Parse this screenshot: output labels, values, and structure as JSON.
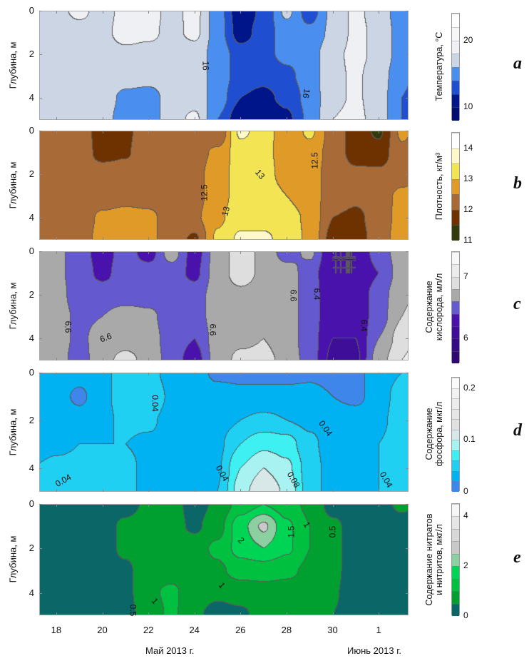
{
  "chart_data": [
    {
      "type": "heatmap",
      "panel_letter": "a",
      "ylabel": "Глубина, м",
      "colorbar_title": [
        "Температура, °C"
      ],
      "yticks": [
        "0",
        "2",
        "4"
      ],
      "ylim": [
        5,
        0
      ],
      "levels": [
        8,
        10,
        12,
        14,
        16,
        18,
        20,
        22,
        24
      ],
      "colors": [
        "#000c6e",
        "#00158a",
        "#1f4fd0",
        "#4a8ff0",
        "#ccd5e3",
        "#eef0f4",
        "#f6f6f8",
        "#ffffff"
      ],
      "colorbar_ticks": [
        "10",
        "20"
      ],
      "colorbar_tick_values": [
        10,
        20
      ],
      "contour_labels": [
        "16",
        "16"
      ],
      "depths": [
        0,
        1,
        2,
        3,
        4,
        5
      ],
      "values": [
        [
          17,
          17.5,
          18.4,
          17.3,
          18.6,
          18.8,
          17.4,
          18.6,
          15.0,
          10.5,
          12.5,
          16.5,
          13,
          16.5,
          18.5,
          17,
          15,
          14
        ],
        [
          17,
          17.2,
          17.3,
          17.5,
          18.8,
          18.5,
          17.4,
          18.5,
          15.0,
          11,
          13,
          15,
          14.5,
          16.5,
          18.5,
          17.5,
          15,
          14
        ],
        [
          17,
          17,
          17,
          17,
          17.5,
          17.2,
          17,
          17,
          15.2,
          13,
          13.5,
          14.5,
          15,
          17.5,
          18.5,
          17.5,
          15,
          14
        ],
        [
          17,
          17,
          17,
          17,
          17,
          17,
          17,
          17,
          15.3,
          13,
          12.5,
          13.5,
          15,
          17.5,
          18.3,
          17,
          14.5,
          13
        ],
        [
          17,
          17,
          17,
          17,
          15.5,
          15,
          17,
          17,
          15.2,
          12,
          11.5,
          12.5,
          14.8,
          17.5,
          18.3,
          17,
          14,
          12.5
        ],
        [
          17,
          17,
          17,
          16.8,
          15,
          15,
          17,
          18.5,
          14,
          10.5,
          10,
          11.5,
          14.5,
          18,
          18.6,
          17,
          14,
          12
        ]
      ]
    },
    {
      "type": "heatmap",
      "panel_letter": "b",
      "ylabel": "Глубина, м",
      "colorbar_title": [
        "Плотность, кг/м³"
      ],
      "yticks": [
        "0",
        "2",
        "4"
      ],
      "ylim": [
        5,
        0
      ],
      "levels": [
        11,
        11.5,
        12,
        12.5,
        13,
        13.5,
        14,
        14.5
      ],
      "colors": [
        "#343a0c",
        "#6e3200",
        "#a86a36",
        "#e09a28",
        "#f2e452",
        "#fff8c8",
        "#ffffff"
      ],
      "colorbar_ticks": [
        "11",
        "12",
        "13",
        "14"
      ],
      "colorbar_tick_values": [
        11,
        12,
        13,
        14
      ],
      "contour_labels": [
        "12.5",
        "13",
        "13",
        "12.5"
      ],
      "depths": [
        0,
        1,
        2,
        3,
        4,
        5
      ],
      "values": [
        [
          12.2,
          12.3,
          12.25,
          11.8,
          11.9,
          12.3,
          12.3,
          12.25,
          12.0,
          13.6,
          13.3,
          12.6,
          13.1,
          12.3,
          11.8,
          11.4,
          12.6,
          12.2
        ],
        [
          12.2,
          12.3,
          12.25,
          11.85,
          11.95,
          12.3,
          12.3,
          12.3,
          12.6,
          13.3,
          13.2,
          12.7,
          12.8,
          12.3,
          11.8,
          11.7,
          12.4,
          12.2
        ],
        [
          12.2,
          12.2,
          12.2,
          12.2,
          12.2,
          12.3,
          12.3,
          12.3,
          12.8,
          13.2,
          13.2,
          12.8,
          12.7,
          12.3,
          12.1,
          12.1,
          12.3,
          12.4
        ],
        [
          12.2,
          12.2,
          12.2,
          12.2,
          12.3,
          12.3,
          12.3,
          12.3,
          12.8,
          13.2,
          13.3,
          13.0,
          12.7,
          12.3,
          12.1,
          12.3,
          12.6,
          12.8
        ],
        [
          12.2,
          12.2,
          12.2,
          12.6,
          12.7,
          12.6,
          12.3,
          12.4,
          12.9,
          13.3,
          13.3,
          13.2,
          12.9,
          12.0,
          11.9,
          12.2,
          12.7,
          13.1
        ],
        [
          12.2,
          12.2,
          12.2,
          12.7,
          12.8,
          12.6,
          12.3,
          11.9,
          13.1,
          13.6,
          13.6,
          13.3,
          12.9,
          11.8,
          11.8,
          12.2,
          12.8,
          13.2
        ]
      ]
    },
    {
      "type": "heatmap",
      "panel_letter": "c",
      "ylabel": "Глубина, м",
      "colorbar_title": [
        "Содержание",
        "кислорода, мл/л"
      ],
      "yticks": [
        "0",
        "2",
        "4"
      ],
      "ylim": [
        5,
        0
      ],
      "levels": [
        5.6,
        5.8,
        6.0,
        6.2,
        6.4,
        6.6,
        6.8,
        7.0,
        7.2,
        7.4
      ],
      "colors": [
        "#2e0a70",
        "#360c85",
        "#3e0e98",
        "#4a12ad",
        "#6459cf",
        "#a9a9a9",
        "#dedede",
        "#ececec",
        "#f8f8f8"
      ],
      "colorbar_ticks": [
        "6",
        "7"
      ],
      "colorbar_tick_values": [
        6,
        7
      ],
      "contour_labels": [
        "6.6",
        "6.6",
        "6.6",
        "6.6",
        "6.4",
        "6.4"
      ],
      "depths": [
        0,
        1,
        2,
        3,
        4,
        5
      ],
      "values": [
        [
          6.7,
          6.65,
          6.5,
          6.3,
          6.5,
          6.3,
          6.7,
          6.3,
          6.7,
          6.9,
          6.75,
          6.5,
          6.65,
          6.2,
          6.2,
          6.5,
          6.7,
          6.8
        ],
        [
          6.7,
          6.65,
          6.5,
          6.35,
          6.5,
          6.5,
          6.5,
          6.35,
          6.7,
          6.9,
          6.75,
          6.7,
          6.5,
          6.2,
          6.2,
          6.4,
          6.7,
          6.8
        ],
        [
          6.7,
          6.68,
          6.5,
          6.5,
          6.5,
          6.5,
          6.5,
          6.5,
          6.7,
          6.75,
          6.7,
          6.7,
          6.5,
          6.25,
          6.25,
          6.5,
          6.75,
          6.9
        ],
        [
          6.7,
          6.7,
          6.55,
          6.6,
          6.7,
          6.65,
          6.5,
          6.5,
          6.7,
          6.7,
          6.7,
          6.7,
          6.5,
          6.25,
          6.25,
          6.5,
          6.8,
          7.0
        ],
        [
          6.7,
          6.7,
          6.55,
          6.7,
          6.72,
          6.7,
          6.5,
          6.4,
          6.7,
          6.75,
          6.8,
          6.7,
          6.5,
          6.2,
          6.2,
          6.6,
          6.9,
          7.1
        ],
        [
          6.7,
          6.7,
          6.5,
          6.75,
          6.85,
          6.75,
          6.5,
          6.3,
          6.7,
          6.85,
          6.85,
          6.75,
          6.5,
          6.15,
          6.15,
          6.7,
          7.0,
          7.2
        ]
      ]
    },
    {
      "type": "heatmap",
      "panel_letter": "d",
      "ylabel": "Глубина, м",
      "colorbar_title": [
        "Содержание",
        "фосфора, мкг/л"
      ],
      "yticks": [
        "0",
        "2",
        "4"
      ],
      "ylim": [
        5,
        0
      ],
      "levels": [
        0,
        0.02,
        0.04,
        0.06,
        0.08,
        0.1,
        0.12,
        0.14,
        0.16,
        0.18,
        0.2,
        0.22
      ],
      "colors": [
        "#3f86ea",
        "#00b2f2",
        "#20d0f2",
        "#3ff0f2",
        "#a8f2f2",
        "#d8e8e8",
        "#e0e0e0",
        "#e6e6e6",
        "#ececec",
        "#f2f2f2",
        "#fafafa"
      ],
      "colorbar_ticks": [
        "0",
        "0.1",
        "0.2"
      ],
      "colorbar_tick_values": [
        0,
        0.1,
        0.2
      ],
      "contour_labels": [
        "0.04",
        "0.04",
        "0.04",
        "0.04",
        "0.08",
        "0.04"
      ],
      "depths": [
        0,
        1,
        2,
        3,
        4,
        5
      ],
      "values": [
        [
          0.03,
          0.03,
          0.03,
          0.035,
          0.05,
          0.05,
          0.03,
          0.03,
          0.015,
          0.015,
          0.015,
          0.015,
          0.017,
          0.015,
          0.015,
          0.03,
          0.04,
          0.07
        ],
        [
          0.03,
          0.03,
          0.015,
          0.035,
          0.05,
          0.06,
          0.035,
          0.03,
          0.03,
          0.025,
          0.025,
          0.025,
          0.025,
          0.02,
          0.015,
          0.03,
          0.05,
          0.08
        ],
        [
          0.03,
          0.03,
          0.03,
          0.035,
          0.045,
          0.045,
          0.03,
          0.03,
          0.03,
          0.04,
          0.045,
          0.04,
          0.035,
          0.03,
          0.03,
          0.035,
          0.05,
          0.07
        ],
        [
          0.03,
          0.035,
          0.04,
          0.04,
          0.04,
          0.035,
          0.03,
          0.03,
          0.035,
          0.06,
          0.075,
          0.07,
          0.045,
          0.03,
          0.03,
          0.04,
          0.05,
          0.06
        ],
        [
          0.04,
          0.045,
          0.045,
          0.045,
          0.045,
          0.035,
          0.03,
          0.03,
          0.037,
          0.08,
          0.1,
          0.085,
          0.05,
          0.03,
          0.03,
          0.04,
          0.05,
          0.06
        ],
        [
          0.045,
          0.05,
          0.05,
          0.05,
          0.045,
          0.035,
          0.03,
          0.03,
          0.04,
          0.09,
          0.12,
          0.095,
          0.05,
          0.03,
          0.03,
          0.04,
          0.05,
          0.06
        ]
      ]
    },
    {
      "type": "heatmap",
      "panel_letter": "e",
      "ylabel": "Глубина, м",
      "colorbar_title": [
        "Содержание нитратов",
        "и нитритов, мкг/л"
      ],
      "yticks": [
        "0",
        "2",
        "4"
      ],
      "ylim": [
        5,
        0
      ],
      "levels": [
        0,
        0.5,
        1,
        1.5,
        2,
        2.5,
        3,
        3.5,
        4,
        4.5
      ],
      "colors": [
        "#0b6767",
        "#00a030",
        "#00c040",
        "#00d455",
        "#8ccfa0",
        "#c8c8c8",
        "#d8d8d8",
        "#e6e6e6",
        "#f6f6f6"
      ],
      "colorbar_ticks": [
        "0",
        "2",
        "4"
      ],
      "colorbar_tick_values": [
        0,
        2,
        4
      ],
      "contour_labels": [
        "2",
        "1.5",
        "1",
        "0.5",
        "1",
        "0.5",
        "1"
      ],
      "depths": [
        0,
        1,
        2,
        3,
        4,
        5
      ],
      "values": [
        [
          0.3,
          0.3,
          0.3,
          0.3,
          0.3,
          0.6,
          0.7,
          0.3,
          0.6,
          1.2,
          1.5,
          1.2,
          0.9,
          0.3,
          0.3,
          0.3,
          0.6,
          0.3
        ],
        [
          0.3,
          0.3,
          0.3,
          0.3,
          0.6,
          0.8,
          0.7,
          0.4,
          0.8,
          1.8,
          2.6,
          1.6,
          1.0,
          0.6,
          0.3,
          0.3,
          0.3,
          0.3
        ],
        [
          0.3,
          0.3,
          0.3,
          0.3,
          0.6,
          0.8,
          0.8,
          0.8,
          1.1,
          1.7,
          2.0,
          1.6,
          1.0,
          0.6,
          0.3,
          0.3,
          0.3,
          0.3
        ],
        [
          0.3,
          0.3,
          0.3,
          0.3,
          0.4,
          0.8,
          0.8,
          0.8,
          0.9,
          1.2,
          1.2,
          1.1,
          0.9,
          0.6,
          0.3,
          0.3,
          0.3,
          0.3
        ],
        [
          0.3,
          0.3,
          0.3,
          0.3,
          0.35,
          0.9,
          1.1,
          0.7,
          0.6,
          0.7,
          0.8,
          0.8,
          0.7,
          0.55,
          0.3,
          0.3,
          0.3,
          0.3
        ],
        [
          0.3,
          0.3,
          0.3,
          0.3,
          0.35,
          0.7,
          1.1,
          0.6,
          0.3,
          0.4,
          0.7,
          0.7,
          0.7,
          0.5,
          0.3,
          0.3,
          0.3,
          0.3
        ]
      ]
    }
  ],
  "x_dates": [
    "2013-05-17",
    "2013-05-18",
    "2013-05-19",
    "2013-05-20",
    "2013-05-21",
    "2013-05-22",
    "2013-05-23",
    "2013-05-24",
    "2013-05-25",
    "2013-05-26",
    "2013-05-27",
    "2013-05-28",
    "2013-05-29",
    "2013-05-30",
    "2013-05-31",
    "2013-06-01",
    "2013-06-02",
    "2013-06-03"
  ],
  "x_axis": {
    "xlim": [
      "2013-05-17",
      "2013-06-01"
    ],
    "tick_labels": [
      "18",
      "20",
      "22",
      "24",
      "26",
      "28",
      "30",
      "1"
    ],
    "tick_dates": [
      "2013-05-18",
      "2013-05-20",
      "2013-05-22",
      "2013-05-24",
      "2013-05-26",
      "2013-05-28",
      "2013-05-30",
      "2013-06-01"
    ],
    "month_labels": [
      "Май 2013 г.",
      "Июнь 2013 г."
    ]
  }
}
